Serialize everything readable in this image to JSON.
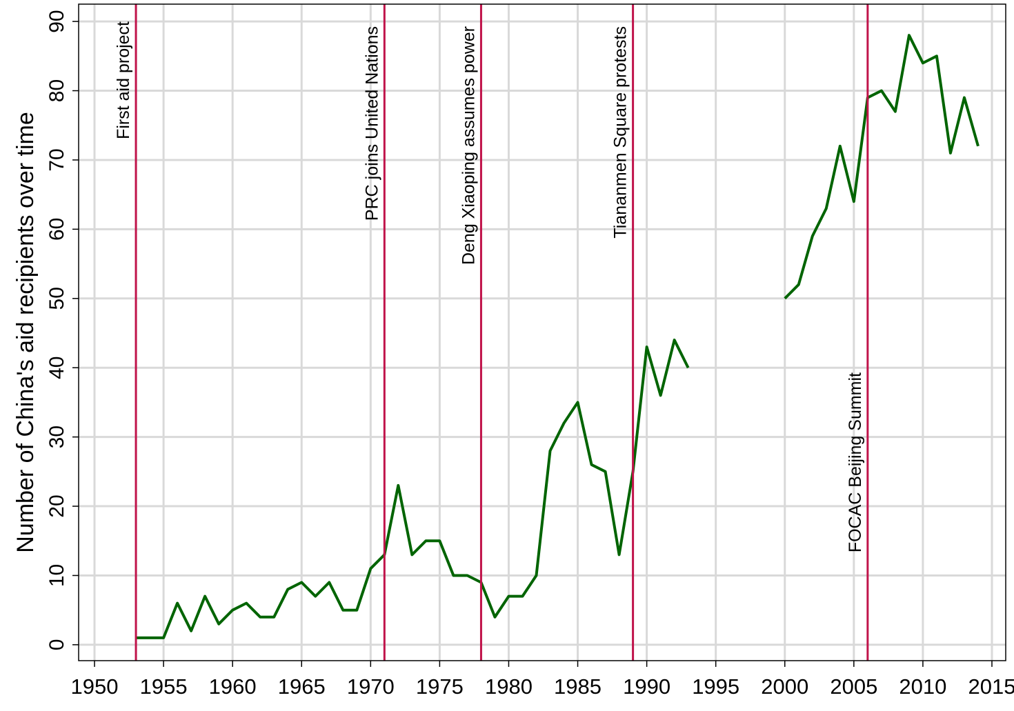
{
  "chart_data": {
    "type": "line",
    "y_label": "Number of China's aid recipients over time",
    "x": [
      1953,
      1954,
      1955,
      1956,
      1957,
      1958,
      1959,
      1960,
      1961,
      1962,
      1963,
      1964,
      1965,
      1966,
      1967,
      1968,
      1969,
      1970,
      1971,
      1972,
      1973,
      1974,
      1975,
      1976,
      1977,
      1978,
      1979,
      1980,
      1981,
      1982,
      1983,
      1984,
      1985,
      1986,
      1987,
      1988,
      1989,
      1990,
      1991,
      1992,
      1993,
      1994,
      1995,
      1996,
      1997,
      1998,
      1999,
      2000,
      2001,
      2002,
      2003,
      2004,
      2005,
      2006,
      2007,
      2008,
      2009,
      2010,
      2011,
      2012,
      2013,
      2014
    ],
    "values": [
      1,
      1,
      1,
      6,
      2,
      7,
      3,
      5,
      6,
      4,
      4,
      8,
      9,
      7,
      9,
      5,
      5,
      11,
      13,
      23,
      13,
      15,
      15,
      10,
      10,
      9,
      4,
      7,
      7,
      10,
      28,
      32,
      35,
      26,
      25,
      13,
      25,
      43,
      36,
      44,
      40,
      null,
      null,
      null,
      null,
      null,
      null,
      50,
      52,
      59,
      63,
      72,
      64,
      79,
      80,
      77,
      88,
      84,
      85,
      71,
      79,
      72
    ],
    "color": "#006400",
    "annotations": [
      {
        "x": 1953,
        "label": "First aid project"
      },
      {
        "x": 1971,
        "label": "PRC joins United Nations"
      },
      {
        "x": 1978,
        "label": "Deng Xiaoping assumes power"
      },
      {
        "x": 1989,
        "label": "Tiananmen Square protests"
      },
      {
        "x": 2006,
        "label": "FOCAC Beijing Summit"
      }
    ],
    "annotation_color": "#c0134a",
    "xlim": [
      1948.85,
      2016
    ],
    "ylim": [
      -2.3,
      92.5
    ],
    "xticks": [
      1950,
      1955,
      1960,
      1965,
      1970,
      1975,
      1980,
      1985,
      1990,
      1995,
      2000,
      2005,
      2010,
      2015
    ],
    "yticks": [
      0,
      10,
      20,
      30,
      40,
      50,
      60,
      70,
      80,
      90
    ],
    "grid": true
  }
}
